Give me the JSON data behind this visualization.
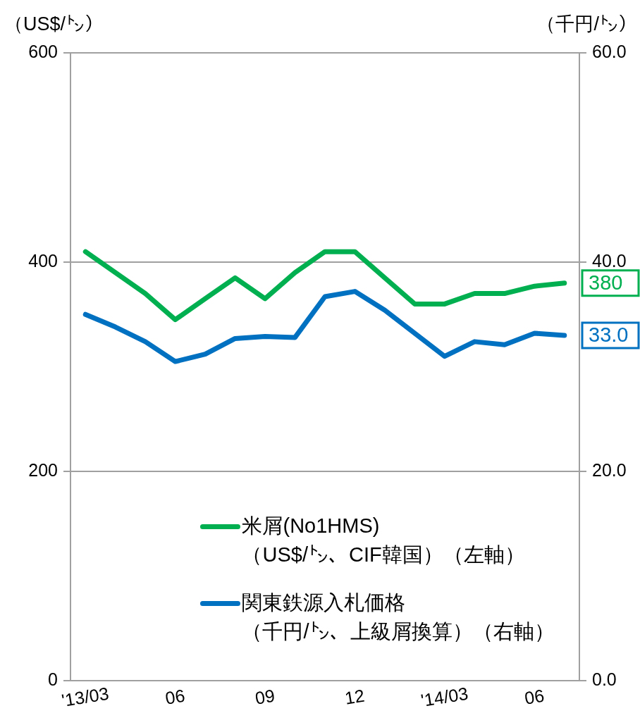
{
  "chart_data": {
    "type": "line",
    "ylabel": "（US$/㌧）",
    "y2label": "（千円/㌧）",
    "categories": [
      "'13/03",
      null,
      null,
      "06",
      null,
      null,
      "09",
      null,
      null,
      "12",
      null,
      null,
      "'14/03",
      null,
      null,
      "06",
      null
    ],
    "series": [
      {
        "name": "米屑(No1HMS)（US$/㌧、CIF韓国）（左軸）",
        "color": "#00b050",
        "values": [
          410,
          390,
          370,
          345,
          365,
          385,
          365,
          390,
          410,
          410,
          385,
          360,
          360,
          370,
          370,
          377,
          380
        ],
        "value_labels": [
          null,
          null,
          null,
          null,
          null,
          null,
          null,
          null,
          null,
          null,
          null,
          null,
          null,
          null,
          null,
          null,
          "380"
        ]
      },
      {
        "name": "関東鉄源入札価格（千円/㌧、上級屑換算）（右軸）",
        "color": "#0070c0",
        "axis": "y2",
        "values": [
          35.0,
          33.8,
          32.4,
          30.5,
          31.2,
          32.7,
          32.9,
          32.8,
          36.7,
          37.2,
          35.4,
          33.2,
          31.0,
          32.4,
          32.1,
          33.2,
          33.0
        ],
        "value_labels": [
          null,
          null,
          null,
          null,
          null,
          null,
          null,
          null,
          null,
          null,
          null,
          null,
          null,
          null,
          null,
          null,
          "33.0"
        ]
      }
    ],
    "ylim": [
      0,
      600
    ],
    "yticks": [
      0,
      200,
      400,
      600
    ],
    "y2lim": [
      0,
      60
    ],
    "y2ticks": [
      {
        "value": 0,
        "label": "0.0"
      },
      {
        "value": 20,
        "label": "20.0"
      },
      {
        "value": 40,
        "label": "40.0"
      },
      {
        "value": 60,
        "label": "60.0"
      }
    ],
    "grid": "y",
    "legend": "bottom",
    "marker": "none"
  }
}
